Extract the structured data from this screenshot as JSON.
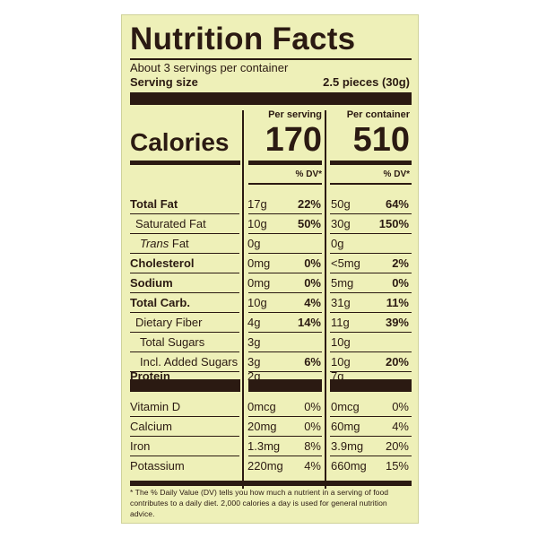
{
  "label": {
    "title": "Nutrition Facts",
    "servings_per_container": "About 3 servings per container",
    "serving_size_label": "Serving size",
    "serving_size_value": "2.5 pieces (30g)",
    "column_serving": "Per serving",
    "column_container": "Per container",
    "calories_label": "Calories",
    "calories_serving": "170",
    "calories_container": "510",
    "dv_header": "% DV*"
  },
  "nutrients": [
    {
      "name": "Total Fat",
      "amount_serving": "17g",
      "dv_serving": "22%",
      "amount_container": "50g",
      "dv_container": "64%"
    },
    {
      "name": "Saturated Fat",
      "amount_serving": "10g",
      "dv_serving": "50%",
      "amount_container": "30g",
      "dv_container": "150%"
    },
    {
      "name_italic": "Trans",
      "name": " Fat",
      "amount_serving": "0g",
      "dv_serving": "",
      "amount_container": "0g",
      "dv_container": ""
    },
    {
      "name": "Cholesterol",
      "amount_serving": "0mg",
      "dv_serving": "0%",
      "amount_container": "<5mg",
      "dv_container": "2%"
    },
    {
      "name": "Sodium",
      "amount_serving": "0mg",
      "dv_serving": "0%",
      "amount_container": "5mg",
      "dv_container": "0%"
    },
    {
      "name": "Total Carb.",
      "amount_serving": "10g",
      "dv_serving": "4%",
      "amount_container": "31g",
      "dv_container": "11%"
    },
    {
      "name": "Dietary Fiber",
      "amount_serving": "4g",
      "dv_serving": "14%",
      "amount_container": "11g",
      "dv_container": "39%"
    },
    {
      "name": "Total Sugars",
      "amount_serving": "3g",
      "dv_serving": "",
      "amount_container": "10g",
      "dv_container": ""
    },
    {
      "name": "Incl. Added Sugars",
      "amount_serving": "3g",
      "dv_serving": "6%",
      "amount_container": "10g",
      "dv_container": "20%"
    },
    {
      "name": "Protein",
      "amount_serving": "2g",
      "dv_serving": "",
      "amount_container": "7g",
      "dv_container": ""
    }
  ],
  "vitamins": [
    {
      "name": "Vitamin D",
      "amount_serving": "0mcg",
      "dv_serving": "0%",
      "amount_container": "0mcg",
      "dv_container": "0%"
    },
    {
      "name": "Calcium",
      "amount_serving": "20mg",
      "dv_serving": "0%",
      "amount_container": "60mg",
      "dv_container": "4%"
    },
    {
      "name": "Iron",
      "amount_serving": "1.3mg",
      "dv_serving": "8%",
      "amount_container": "3.9mg",
      "dv_container": "20%"
    },
    {
      "name": "Potassium",
      "amount_serving": "220mg",
      "dv_serving": "4%",
      "amount_container": "660mg",
      "dv_container": "15%"
    }
  ],
  "footnote": "* The % Daily Value (DV) tells you how much a nutrient in a serving of food contributes to a daily diet. 2,000 calories a day is used for general nutrition advice.",
  "colors": {
    "panel": "#eef0b8",
    "ink": "#2b1a12"
  }
}
